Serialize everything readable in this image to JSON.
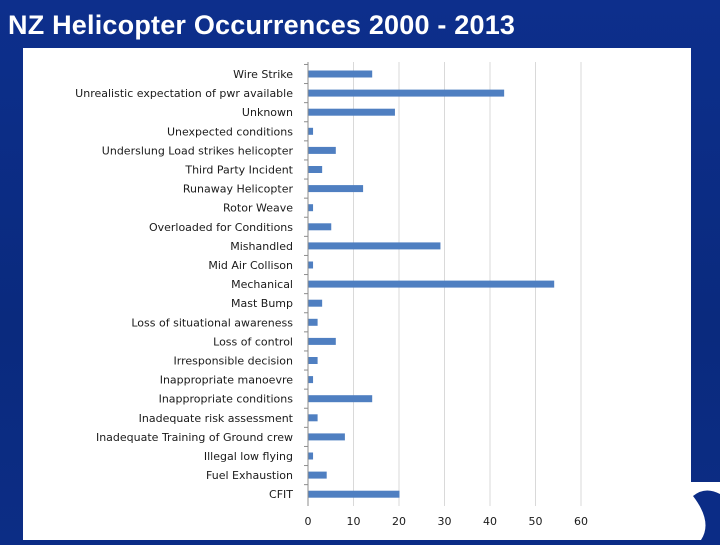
{
  "slide": {
    "title": "NZ Helicopter Occurrences 2000 - 2013"
  },
  "colors": {
    "background": "#0b2c86",
    "title": "#ffffff",
    "bar": "#4f7fc1",
    "gridline": "#d9d9d9",
    "axis": "#8c8c8c"
  },
  "chart_data": {
    "type": "bar",
    "orientation": "horizontal",
    "title": "",
    "xlabel": "",
    "ylabel": "",
    "xlim": [
      0,
      60
    ],
    "x_ticks": [
      0,
      10,
      20,
      30,
      40,
      50,
      60
    ],
    "grid": true,
    "legend": "none",
    "categories": [
      "Wire Strike",
      "Unrealistic expectation of pwr available",
      "Unknown",
      "Unexpected conditions",
      "Underslung Load strikes helicopter",
      "Third Party Incident",
      "Runaway Helicopter",
      "Rotor Weave",
      "Overloaded for Conditions",
      "Mishandled",
      "Mid Air Collison",
      "Mechanical",
      "Mast Bump",
      "Loss of situational awareness",
      "Loss of control",
      "Irresponsible decision",
      "Inappropriate manoevre",
      "Inappropriate conditions",
      "Inadequate risk assessment",
      "Inadequate Training of Ground crew",
      "Illegal low flying",
      "Fuel Exhaustion",
      "CFIT"
    ],
    "values": [
      14,
      43,
      19,
      1,
      6,
      3,
      12,
      1,
      5,
      29,
      1,
      54,
      3,
      2,
      6,
      2,
      1,
      14,
      2,
      8,
      1,
      4,
      20
    ]
  }
}
